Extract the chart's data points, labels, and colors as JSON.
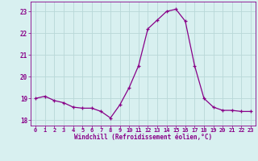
{
  "hours": [
    0,
    1,
    2,
    3,
    4,
    5,
    6,
    7,
    8,
    9,
    10,
    11,
    12,
    13,
    14,
    15,
    16,
    17,
    18,
    19,
    20,
    21,
    22,
    23
  ],
  "windchill": [
    19.0,
    19.1,
    18.9,
    18.8,
    18.6,
    18.55,
    18.55,
    18.4,
    18.1,
    18.7,
    19.5,
    20.5,
    22.2,
    22.6,
    23.0,
    23.1,
    22.55,
    20.5,
    19.0,
    18.6,
    18.45,
    18.45,
    18.4,
    18.4
  ],
  "bg_color": "#d8f0f0",
  "grid_color": "#b8d8d8",
  "line_color": "#880088",
  "xlabel": "Windchill (Refroidissement éolien,°C)",
  "ylim": [
    17.75,
    23.45
  ],
  "yticks": [
    18,
    19,
    20,
    21,
    22,
    23
  ],
  "xlim": [
    -0.5,
    23.5
  ],
  "xticks": [
    0,
    1,
    2,
    3,
    4,
    5,
    6,
    7,
    8,
    9,
    10,
    11,
    12,
    13,
    14,
    15,
    16,
    17,
    18,
    19,
    20,
    21,
    22,
    23
  ],
  "xtick_labels": [
    "0",
    "1",
    "2",
    "3",
    "4",
    "5",
    "6",
    "7",
    "8",
    "9",
    "10",
    "11",
    "12",
    "13",
    "14",
    "15",
    "16",
    "17",
    "18",
    "19",
    "20",
    "21",
    "22",
    "23"
  ]
}
